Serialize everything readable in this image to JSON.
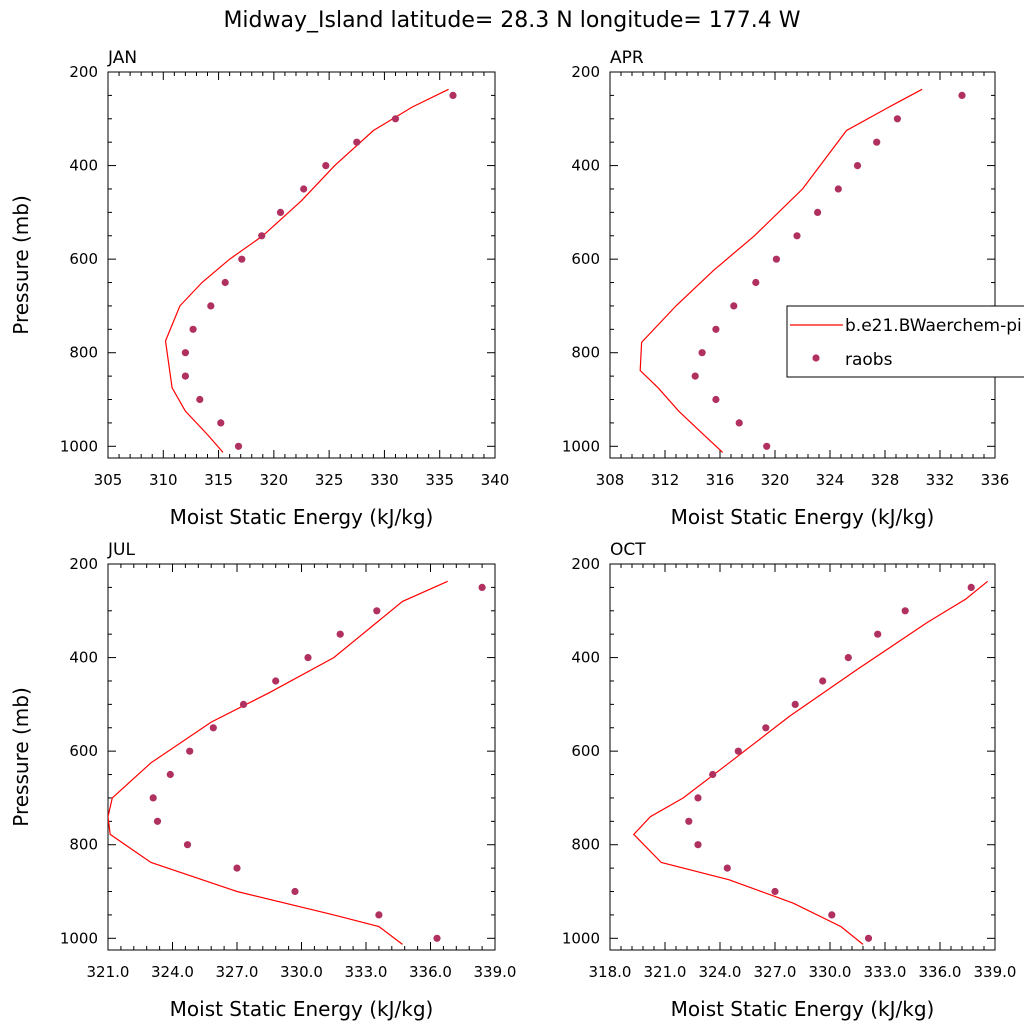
{
  "page_title": "Midway_Island  latitude= 28.3 N longitude= 177.4 W",
  "colors": {
    "model_line": "#ff0000",
    "raobs_marker": "#b03060",
    "axis": "#000000"
  },
  "legend": {
    "placement": "right of APR panel",
    "entries": [
      {
        "label": "b.e21.BWaerchem-pi",
        "style": "line",
        "color": "#ff0000"
      },
      {
        "label": "raobs",
        "style": "marker",
        "color": "#b03060"
      }
    ]
  },
  "chart_data": [
    {
      "type": "line",
      "panel": "JAN",
      "title": "JAN",
      "xlabel": "Moist Static Energy (kJ/kg)",
      "ylabel": "Pressure (mb)",
      "xlim": [
        305,
        340
      ],
      "ylim": [
        200,
        1025
      ],
      "y_reversed": true,
      "x_ticks": [
        305,
        310,
        315,
        320,
        325,
        330,
        335,
        340
      ],
      "x_tick_labels": [
        "305",
        "310",
        "315",
        "320",
        "325",
        "330",
        "335",
        "340"
      ],
      "y_ticks": [
        200,
        400,
        600,
        800,
        1000
      ],
      "y_tick_labels": [
        "200",
        "400",
        "600",
        "800",
        "1000"
      ],
      "series": [
        {
          "name": "b.e21.BWaerchem-pi",
          "style": "line",
          "x": [
            315.4,
            314.0,
            312.0,
            310.8,
            310.2,
            311.5,
            313.5,
            316.0,
            319.0,
            322.5,
            325.5,
            329.0,
            332.5,
            335.8
          ],
          "y": [
            1013,
            975,
            925,
            875,
            775,
            700,
            650,
            600,
            550,
            475,
            400,
            325,
            275,
            237
          ]
        },
        {
          "name": "raobs",
          "style": "marker",
          "x": [
            316.8,
            315.2,
            313.3,
            312.0,
            312.0,
            312.7,
            314.3,
            315.6,
            317.1,
            318.9,
            320.6,
            322.7,
            324.7,
            327.5,
            331.0,
            336.2
          ],
          "y": [
            1000,
            950,
            900,
            850,
            800,
            750,
            700,
            650,
            600,
            550,
            500,
            450,
            400,
            350,
            300,
            250
          ]
        }
      ]
    },
    {
      "type": "line",
      "panel": "APR",
      "title": "APR",
      "xlabel": "Moist Static Energy (kJ/kg)",
      "ylabel": "",
      "xlim": [
        308,
        336
      ],
      "ylim": [
        200,
        1025
      ],
      "y_reversed": true,
      "x_ticks": [
        308,
        312,
        316,
        320,
        324,
        328,
        332,
        336
      ],
      "x_tick_labels": [
        "308",
        "312",
        "316",
        "320",
        "324",
        "328",
        "332",
        "336"
      ],
      "y_ticks": [
        200,
        400,
        600,
        800,
        1000
      ],
      "y_tick_labels": [
        "200",
        "400",
        "600",
        "800",
        "1000"
      ],
      "series": [
        {
          "name": "b.e21.BWaerchem-pi",
          "style": "line",
          "x": [
            316.2,
            314.8,
            313.0,
            311.5,
            310.2,
            310.3,
            312.8,
            315.5,
            318.5,
            322.0,
            325.2,
            328.1,
            330.7
          ],
          "y": [
            1013,
            975,
            925,
            875,
            838,
            778,
            700,
            625,
            550,
            450,
            325,
            278,
            237
          ]
        },
        {
          "name": "raobs",
          "style": "marker",
          "x": [
            319.4,
            317.4,
            315.7,
            314.2,
            314.7,
            315.7,
            317.0,
            318.6,
            320.1,
            321.6,
            323.1,
            324.6,
            326.0,
            327.4,
            328.9,
            333.6
          ],
          "y": [
            1000,
            950,
            900,
            850,
            800,
            750,
            700,
            650,
            600,
            550,
            500,
            450,
            400,
            350,
            300,
            250
          ]
        }
      ]
    },
    {
      "type": "line",
      "panel": "JUL",
      "title": "JUL",
      "xlabel": "Moist Static Energy (kJ/kg)",
      "ylabel": "Pressure (mb)",
      "xlim": [
        321,
        339
      ],
      "ylim": [
        200,
        1025
      ],
      "y_reversed": true,
      "x_ticks": [
        321,
        324,
        327,
        330,
        333,
        336,
        339
      ],
      "x_tick_labels": [
        "321.0",
        "324.0",
        "327.0",
        "330.0",
        "333.0",
        "336.0",
        "339.0"
      ],
      "y_ticks": [
        200,
        400,
        600,
        800,
        1000
      ],
      "y_tick_labels": [
        "200",
        "400",
        "600",
        "800",
        "1000"
      ],
      "series": [
        {
          "name": "b.e21.BWaerchem-pi",
          "style": "line",
          "x": [
            334.7,
            333.6,
            331.5,
            327.0,
            323.0,
            321.1,
            321.0,
            321.2,
            323.0,
            325.8,
            328.5,
            331.5,
            334.7,
            336.8
          ],
          "y": [
            1013,
            975,
            950,
            900,
            838,
            778,
            740,
            700,
            625,
            538,
            475,
            400,
            280,
            237
          ]
        },
        {
          "name": "raobs",
          "style": "marker",
          "x": [
            336.3,
            333.6,
            329.7,
            327.0,
            324.7,
            323.3,
            323.1,
            323.9,
            324.8,
            325.9,
            327.3,
            328.8,
            330.3,
            331.8,
            333.5,
            338.4
          ],
          "y": [
            1000,
            950,
            900,
            850,
            800,
            750,
            700,
            650,
            600,
            550,
            500,
            450,
            400,
            350,
            300,
            250
          ]
        }
      ]
    },
    {
      "type": "line",
      "panel": "OCT",
      "title": "OCT",
      "xlabel": "Moist Static Energy (kJ/kg)",
      "ylabel": "",
      "xlim": [
        318,
        339
      ],
      "ylim": [
        200,
        1025
      ],
      "y_reversed": true,
      "x_ticks": [
        318,
        321,
        324,
        327,
        330,
        333,
        336,
        339
      ],
      "x_tick_labels": [
        "318.0",
        "321.0",
        "324.0",
        "327.0",
        "330.0",
        "333.0",
        "336.0",
        "339.0"
      ],
      "y_ticks": [
        200,
        400,
        600,
        800,
        1000
      ],
      "y_tick_labels": [
        "200",
        "400",
        "600",
        "800",
        "1000"
      ],
      "series": [
        {
          "name": "b.e21.BWaerchem-pi",
          "style": "line",
          "x": [
            331.8,
            330.6,
            328.0,
            324.5,
            320.8,
            319.3,
            320.2,
            322.0,
            324.5,
            327.8,
            331.5,
            335.3,
            337.4,
            338.6
          ],
          "y": [
            1013,
            975,
            925,
            875,
            838,
            778,
            740,
            700,
            625,
            525,
            425,
            325,
            275,
            237
          ]
        },
        {
          "name": "raobs",
          "style": "marker",
          "x": [
            332.1,
            330.1,
            327.0,
            324.4,
            322.8,
            322.3,
            322.8,
            323.6,
            325.0,
            326.5,
            328.1,
            329.6,
            331.0,
            332.6,
            334.1,
            337.7
          ],
          "y": [
            1000,
            950,
            900,
            850,
            800,
            750,
            700,
            650,
            600,
            550,
            500,
            450,
            400,
            350,
            300,
            250
          ]
        }
      ]
    }
  ]
}
